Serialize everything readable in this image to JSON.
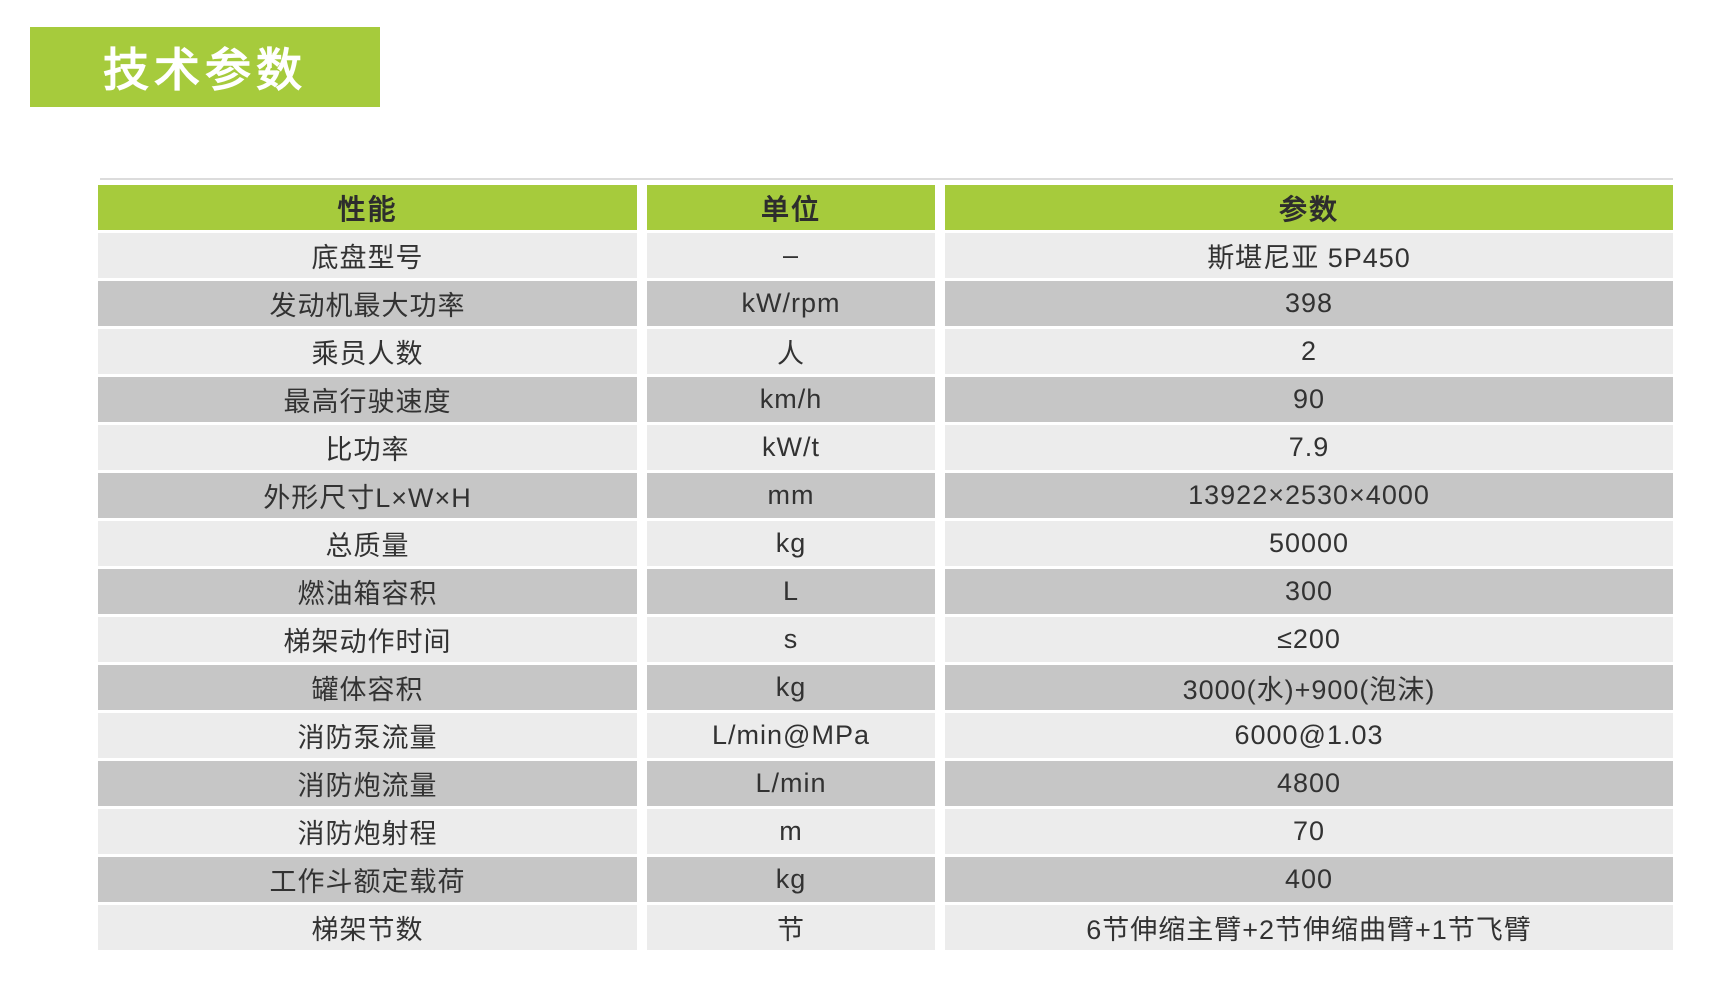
{
  "page": {
    "title_badge": "技术参数"
  },
  "colors": {
    "accent_green": "#a6cb3c",
    "row_light": "#ececec",
    "row_dark": "#c6c6c6",
    "header_text": "#2d2d2d",
    "body_text": "#323232",
    "badge_text": "#ffffff",
    "page_bg": "#ffffff",
    "rule": "#dcdcdc"
  },
  "table": {
    "columns": [
      "性能",
      "单位",
      "参数"
    ],
    "rows": [
      {
        "label": "底盘型号",
        "unit": "–",
        "value": "斯堪尼亚 5P450"
      },
      {
        "label": "发动机最大功率",
        "unit": "kW/rpm",
        "value": "398"
      },
      {
        "label": "乘员人数",
        "unit": "人",
        "value": "2"
      },
      {
        "label": "最高行驶速度",
        "unit": "km/h",
        "value": "90"
      },
      {
        "label": "比功率",
        "unit": "kW/t",
        "value": "7.9"
      },
      {
        "label": "外形尺寸L×W×H",
        "unit": "mm",
        "value": "13922×2530×4000"
      },
      {
        "label": "总质量",
        "unit": "kg",
        "value": "50000"
      },
      {
        "label": "燃油箱容积",
        "unit": "L",
        "value": "300"
      },
      {
        "label": "梯架动作时间",
        "unit": "s",
        "value": "≤200"
      },
      {
        "label": "罐体容积",
        "unit": "kg",
        "value": "3000(水)+900(泡沫)"
      },
      {
        "label": "消防泵流量",
        "unit": "L/min@MPa",
        "value": "6000@1.03"
      },
      {
        "label": "消防炮流量",
        "unit": "L/min",
        "value": "4800"
      },
      {
        "label": "消防炮射程",
        "unit": "m",
        "value": "70"
      },
      {
        "label": "工作斗额定载荷",
        "unit": "kg",
        "value": "400"
      },
      {
        "label": "梯架节数",
        "unit": "节",
        "value": "6节伸缩主臂+2节伸缩曲臂+1节飞臂"
      }
    ]
  }
}
